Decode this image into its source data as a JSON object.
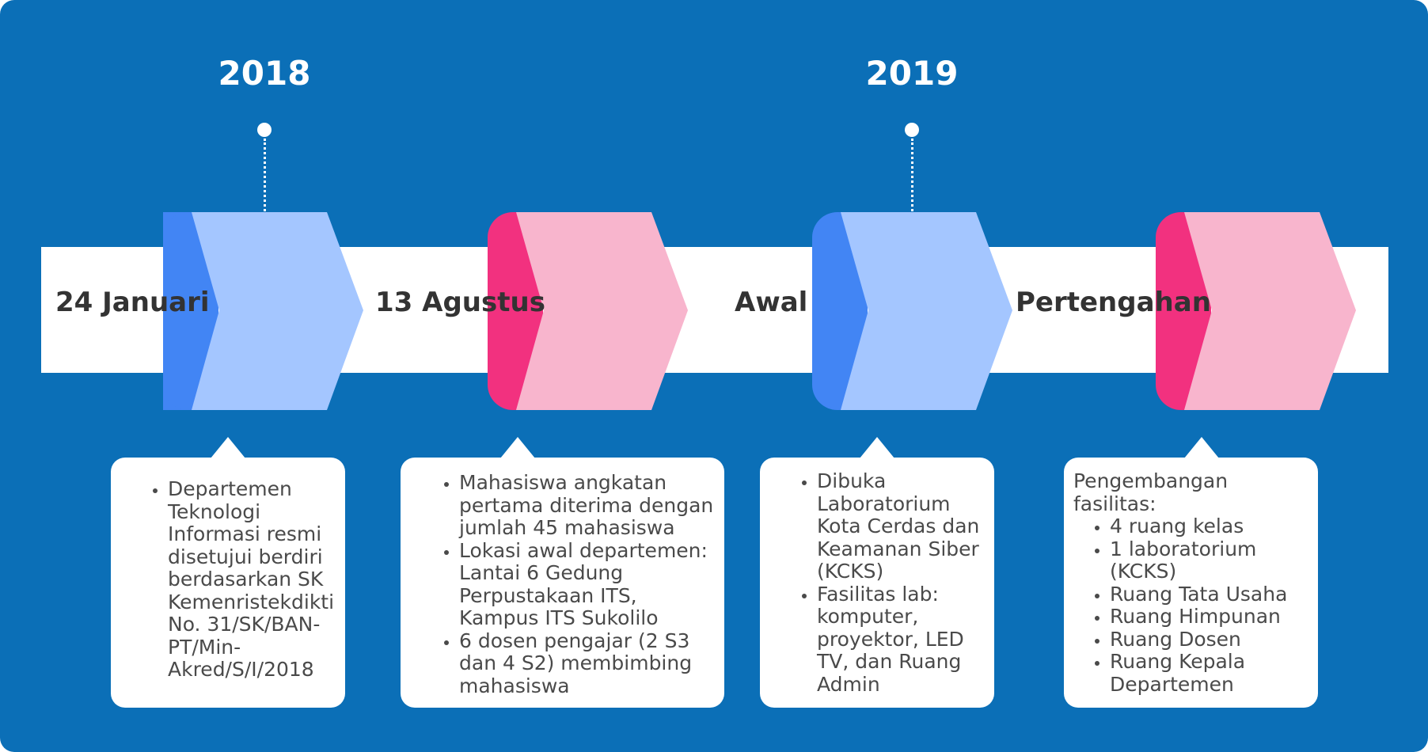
{
  "years": [
    "2018",
    "2019"
  ],
  "timeline": [
    {
      "label": "24 Januari",
      "color": "blue"
    },
    {
      "label": "13 Agustus",
      "color": "pink"
    },
    {
      "label": "Awal",
      "color": "blue"
    },
    {
      "label": "Pertengahan",
      "color": "pink"
    }
  ],
  "cards": [
    {
      "bullets": [
        "Departemen Teknologi Informasi resmi disetujui berdiri berdasarkan SK Kemenristekdikti No. 31/SK/BAN-PT/Min-Akred/S/I/2018"
      ]
    },
    {
      "bullets": [
        "Mahasiswa angkatan pertama diterima dengan jumlah 45 mahasiswa",
        "Lokasi awal departemen: Lantai 6 Gedung Perpustakaan ITS, Kampus ITS Sukolilo",
        "6 dosen pengajar (2 S3 dan 4 S2) membimbing mahasiswa"
      ]
    },
    {
      "bullets": [
        "Dibuka Laboratorium Kota Cerdas dan Keamanan Siber (KCKS)",
        "Fasilitas lab: komputer, proyektor, LED TV, dan Ruang Admin"
      ]
    },
    {
      "intro": "Pengembangan fasilitas:",
      "bullets": [
        "4 ruang kelas",
        "1 laboratorium (KCKS)",
        "Ruang Tata Usaha",
        "Ruang Himpunan",
        "Ruang Dosen",
        "Ruang Kepala Departemen"
      ]
    }
  ],
  "colors": {
    "background": "#0b6fb7",
    "blue_dark": "#4285f4",
    "blue_light": "#a4c6ff",
    "pink_dark": "#f2317f",
    "pink_light": "#f8b5cd"
  }
}
